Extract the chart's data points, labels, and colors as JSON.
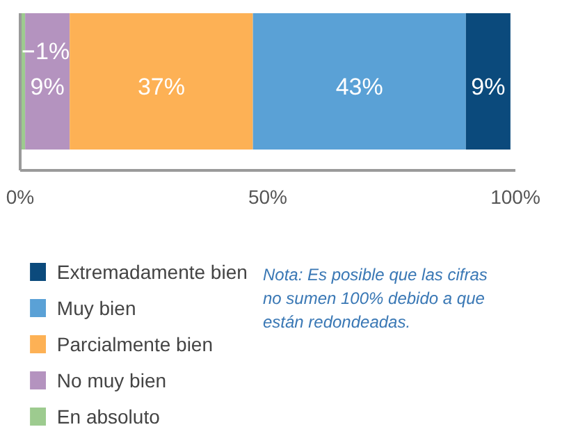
{
  "chart_data": {
    "type": "bar",
    "orientation": "horizontal",
    "stacked": true,
    "categories": [
      null
    ],
    "series": [
      {
        "name": "En absoluto",
        "color": "#9dcb8f",
        "values": [
          1
        ],
        "value_labels": [
          "1%"
        ]
      },
      {
        "name": "No muy bien",
        "color": "#b493bf",
        "values": [
          9
        ],
        "value_labels": [
          "9%"
        ]
      },
      {
        "name": "Parcialmente bien",
        "color": "#fdb155",
        "values": [
          37
        ],
        "value_labels": [
          "37%"
        ]
      },
      {
        "name": "Muy bien",
        "color": "#5aa1d6",
        "values": [
          43
        ],
        "value_labels": [
          "43%"
        ]
      },
      {
        "name": "Extremadamente bien",
        "color": "#0b4a7c",
        "values": [
          9
        ],
        "value_labels": [
          "9%"
        ]
      }
    ],
    "xlim": [
      0,
      100
    ],
    "xticks": [
      {
        "value": 0,
        "label": "0%"
      },
      {
        "value": 50,
        "label": "50%"
      },
      {
        "value": 100,
        "label": "100%"
      }
    ],
    "tick_labels": "x",
    "grid": false,
    "legend": "bottom left",
    "annotations": [
      "Nota: Es posible que las cifras no sumen 100% debido a que están redondeadas."
    ]
  }
}
